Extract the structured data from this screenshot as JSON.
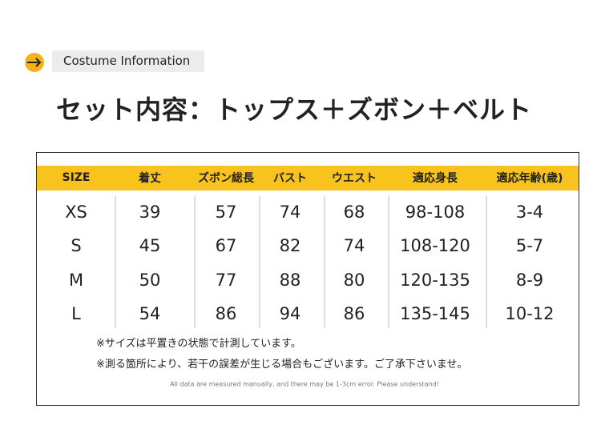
{
  "header": {
    "label": "Costume Information",
    "title": "セット内容：トップス＋ズボン＋ベルト"
  },
  "table": {
    "headers": [
      "SIZE",
      "着丈",
      "ズボン総長",
      "バスト",
      "ウエスト",
      "適応身長",
      "適応年齢(歳)"
    ],
    "rows": [
      [
        "XS",
        "39",
        "57",
        "74",
        "68",
        "98-108",
        "3-4"
      ],
      [
        "S",
        "45",
        "67",
        "82",
        "74",
        "108-120",
        "5-7"
      ],
      [
        "M",
        "50",
        "77",
        "88",
        "80",
        "120-135",
        "8-9"
      ],
      [
        "L",
        "54",
        "86",
        "94",
        "86",
        "135-145",
        "10-12"
      ]
    ]
  },
  "notes": [
    "※サイズは平置きの状態で計測しています。",
    "※測る箇所により、若干の誤差が生じる場合もございます。ご了承下さいませ。"
  ],
  "footnote": "All data are measured manually, and there may be 1-3cm error. Please understand!"
}
